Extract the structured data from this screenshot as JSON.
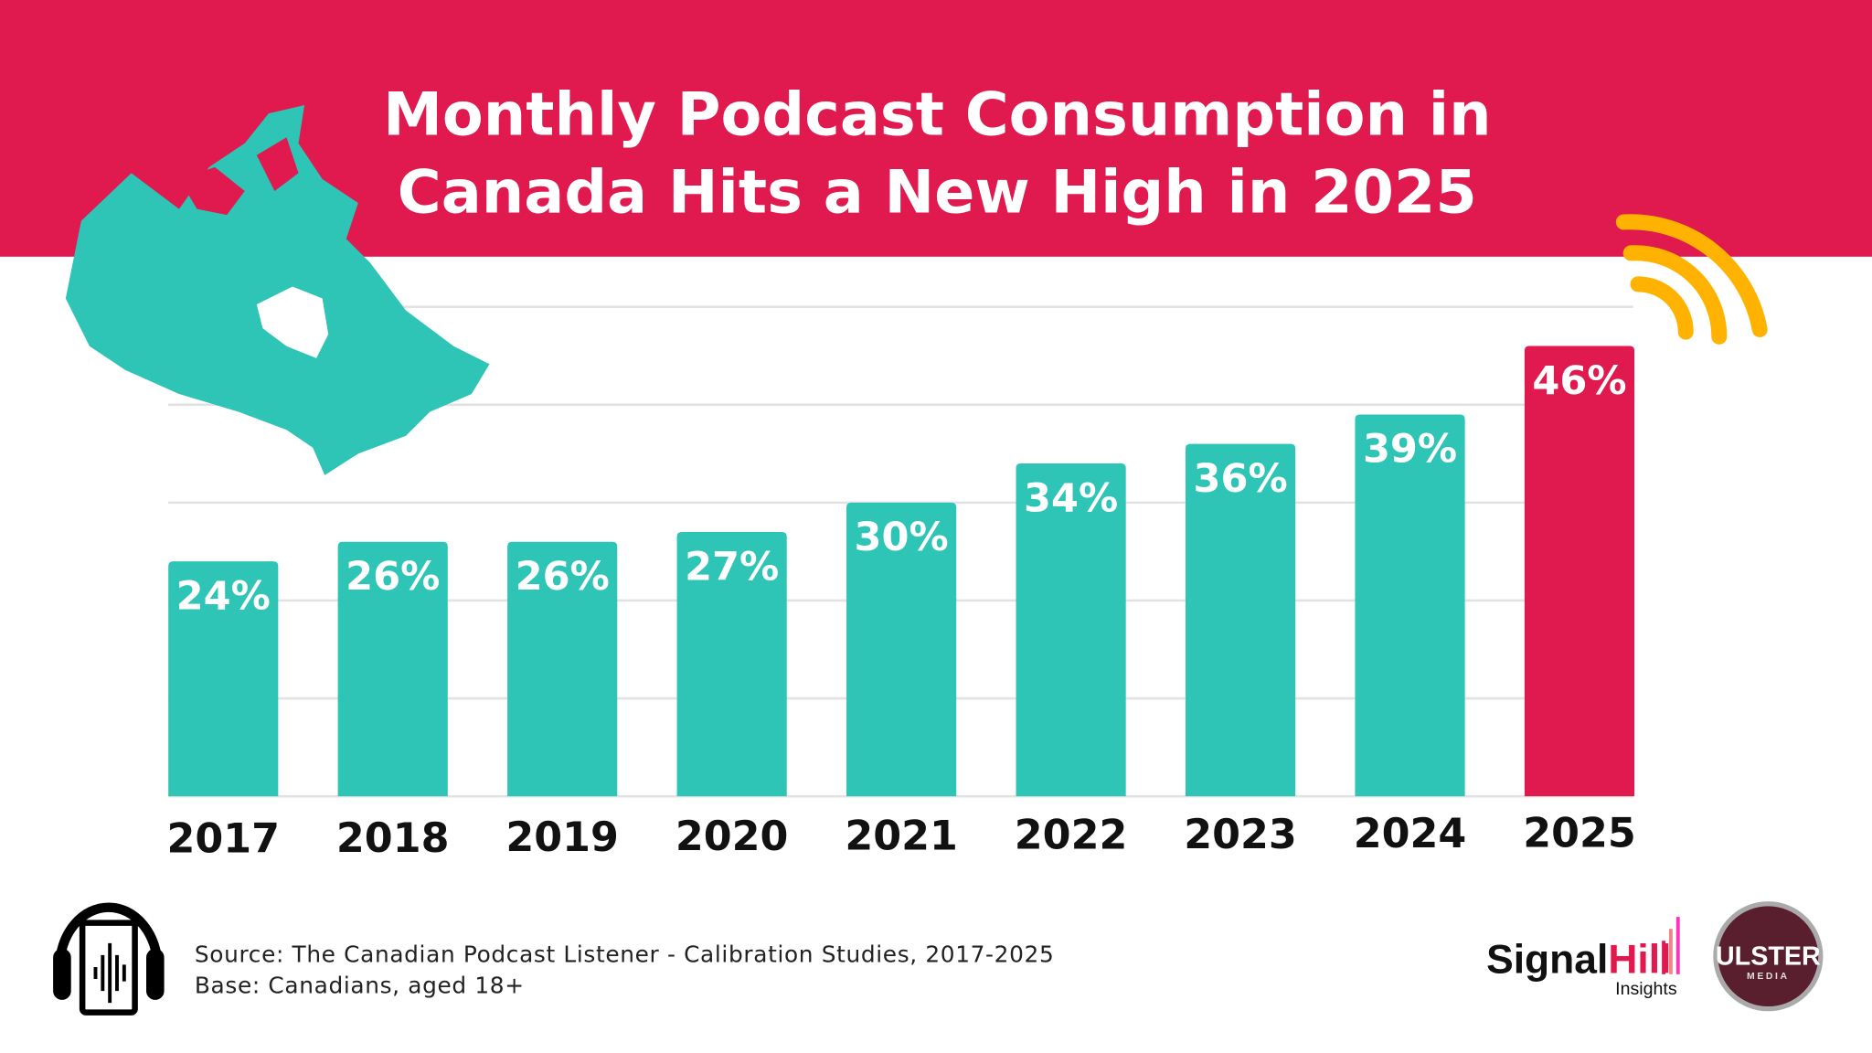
{
  "colors": {
    "banner": "#E0194E",
    "bar": "#2EC4B6",
    "highlight": "#E0194E",
    "signal": "#FFB300",
    "map": "#2EC4B6"
  },
  "header": {
    "title_line1": "Monthly Podcast Consumption in",
    "title_line2": "Canada Hits a New High in 2025"
  },
  "chart_data": {
    "type": "bar",
    "title": "Monthly Podcast Consumption in Canada Hits a New High in 2025",
    "categories": [
      "2017",
      "2018",
      "2019",
      "2020",
      "2021",
      "2022",
      "2023",
      "2024",
      "2025"
    ],
    "values": [
      24,
      26,
      26,
      27,
      30,
      34,
      36,
      39,
      46
    ],
    "data_labels": [
      "24%",
      "26%",
      "26%",
      "27%",
      "30%",
      "34%",
      "36%",
      "39%",
      "46%"
    ],
    "highlight_category": "2025",
    "ylim": [
      0,
      50
    ],
    "grid": true,
    "xlabel": "",
    "ylabel": ""
  },
  "footer": {
    "source": "Source: The Canadian Podcast Listener - Calibration Studies, 2017-2025",
    "base": "Base: Canadians, aged 18+"
  },
  "logos": {
    "signalhill_a": "Signal",
    "signalhill_b": "Hill",
    "signalhill_sub": "Insights",
    "ulster": "ULSTER",
    "ulster_sub": "MEDIA"
  },
  "icons": [
    "canada-map-icon",
    "signal-waves-icon",
    "headphones-phone-icon"
  ]
}
